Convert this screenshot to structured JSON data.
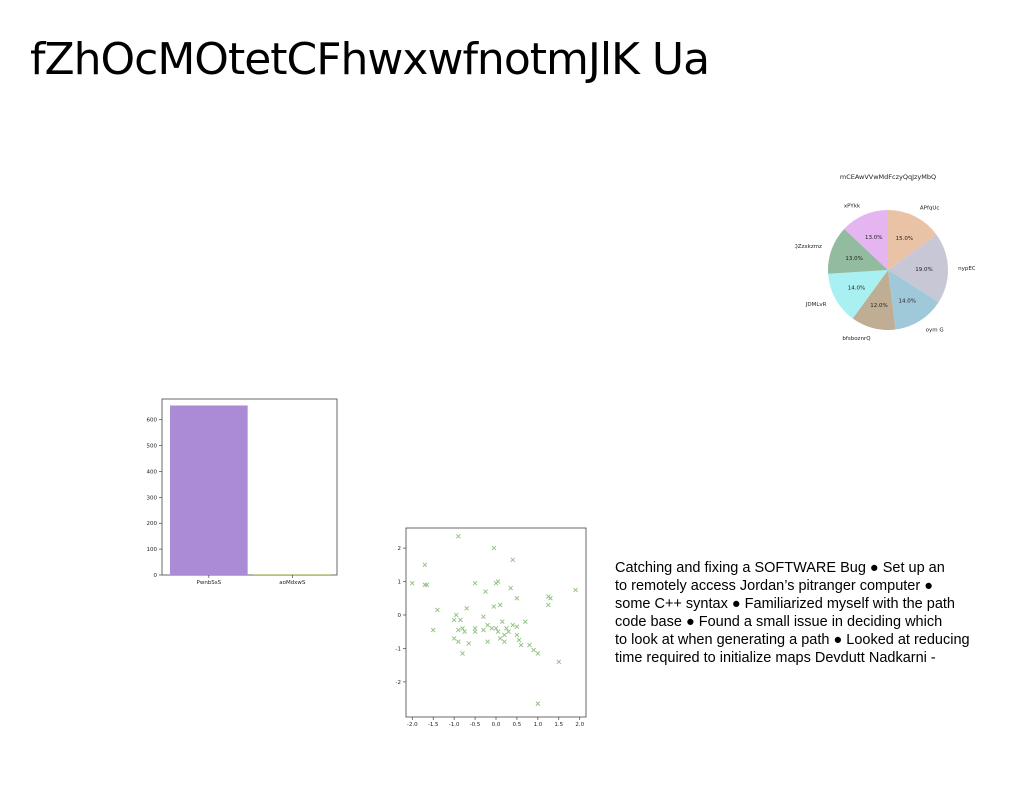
{
  "title": "fZhOcMOtetCFhwxwfnotmJlK Ua",
  "body_lines": [
    "Catching and fixing a SOFTWARE Bug ● Set up an",
    "to remotely access Jordan’s pitranger computer ●",
    "some C++ syntax ● Familiarized myself with the path",
    "code base ● Found a small issue in deciding which",
    "to look at when generating a path ● Looked at reducing",
    "time required to initialize maps Devdutt Nadkarni -"
  ],
  "chart_data": [
    {
      "type": "pie",
      "title": "mCEAwVVwMdFczyQqJzyMbQ",
      "labels": [
        "APfqUc",
        "nypEONM",
        "oym G",
        "bfsboznrQ",
        "JDMLvR",
        "QZzxkzmz",
        "xPYkk"
      ],
      "values": [
        15.0,
        19.0,
        14.0,
        12.0,
        14.0,
        13.0,
        13.0
      ],
      "value_labels": [
        "15.0%",
        "19.0%",
        "14.0%",
        "12.0%",
        "14.0%",
        "13.0%",
        "13.0%"
      ],
      "colors": [
        "#eac3a6",
        "#c8c7d6",
        "#9fc8d9",
        "#bfad94",
        "#a9f0f2",
        "#92bba0",
        "#e5b5f2"
      ]
    },
    {
      "type": "bar",
      "categories": [
        "PwnbSsS",
        "aoMdxwS"
      ],
      "values": [
        655,
        3
      ],
      "colors": [
        "#ac8bd6",
        "#b6c47a"
      ],
      "ylim": [
        0,
        680
      ],
      "yticks": [
        0,
        100,
        200,
        300,
        400,
        500,
        600
      ]
    },
    {
      "type": "scatter",
      "marker": "x",
      "color": "#8fbf7f",
      "xlim": [
        -2.15,
        2.15
      ],
      "ylim": [
        -3.05,
        2.6
      ],
      "xticks": [
        -2.0,
        -1.5,
        -1.0,
        -0.5,
        0.0,
        0.5,
        1.0,
        1.5,
        2.0
      ],
      "ytick_values": [
        -2,
        -1,
        0,
        1,
        2
      ],
      "x": [
        -0.9,
        -0.05,
        0.0,
        0.4,
        -1.7,
        -1.65,
        -2.0,
        -1.7,
        -1.4,
        -1.5,
        -0.5,
        -0.25,
        0.05,
        0.35,
        0.5,
        1.25,
        1.3,
        1.9,
        -0.95,
        -0.85,
        -0.8,
        -0.7,
        -0.5,
        -0.3,
        -0.2,
        -0.1,
        -0.05,
        0.1,
        0.15,
        0.2,
        0.3,
        0.4,
        0.5,
        0.6,
        0.7,
        0.9,
        1.25,
        -1.0,
        -0.9,
        -0.75,
        -0.5,
        -0.3,
        0.0,
        0.1,
        0.2,
        0.55,
        0.8,
        1.0,
        1.5,
        -0.9,
        -0.8,
        0.05,
        1.0,
        -1.0,
        -0.65,
        -0.2,
        0.25,
        0.5
      ],
      "y": [
        2.35,
        2.0,
        0.95,
        1.65,
        1.5,
        0.9,
        0.95,
        0.9,
        0.15,
        -0.45,
        0.95,
        0.7,
        1.0,
        0.8,
        0.5,
        0.55,
        0.5,
        0.75,
        0.0,
        -0.15,
        -0.4,
        0.2,
        -0.4,
        -0.05,
        -0.3,
        -0.4,
        0.25,
        0.3,
        -0.2,
        -0.6,
        -0.5,
        -0.3,
        -0.6,
        -0.9,
        -0.2,
        -1.05,
        0.3,
        -0.15,
        -0.45,
        -0.5,
        -0.5,
        -0.45,
        -0.4,
        -0.7,
        -0.8,
        -0.75,
        -0.9,
        -1.15,
        -1.4,
        -0.8,
        -1.15,
        -0.5,
        -2.65,
        -0.7,
        -0.85,
        -0.8,
        -0.4,
        -0.35
      ]
    }
  ]
}
